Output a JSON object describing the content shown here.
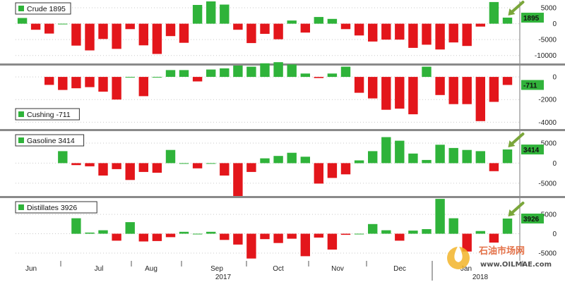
{
  "colors": {
    "positive": "#2fb33a",
    "negative": "#e3161b",
    "arrow": "#7aa63a",
    "grid": "#c9c9c9"
  },
  "chart_data": [
    {
      "type": "bar",
      "name": "Crude",
      "legend_value": "1895",
      "last_value_label": "1895",
      "ylim": [
        -12500,
        7000
      ],
      "yticks": [
        5000,
        0,
        -5000,
        -10000
      ],
      "ytick_labels": [
        "5000",
        "0",
        "-5000",
        "-10000"
      ],
      "values": [
        1800,
        -1900,
        -3100,
        0,
        -6900,
        -8400,
        -4800,
        -7900,
        -1700,
        -6800,
        -9500,
        -3900,
        -6000,
        5900,
        7000,
        6000,
        -1900,
        -6100,
        -3200,
        -4900,
        1000,
        -2800,
        2100,
        1500,
        -1700,
        -3700,
        -5600,
        -5000,
        -5000,
        -7600,
        -6600,
        -8100,
        -5900,
        -7000,
        -900,
        6800,
        1895
      ]
    },
    {
      "type": "bar",
      "name": "Cushing",
      "legend_value": "-711",
      "last_value_label": "-711",
      "ylim": [
        -4600,
        1000
      ],
      "yticks": [
        0,
        -2000,
        -4000
      ],
      "ytick_labels": [
        "0",
        "-2000",
        "-4000"
      ],
      "values": [
        -700,
        -1150,
        -1000,
        -900,
        -1300,
        -2000,
        0,
        -1700,
        0,
        600,
        600,
        -400,
        650,
        750,
        1000,
        900,
        1200,
        1300,
        1100,
        300,
        -100,
        300,
        900,
        -1400,
        -1900,
        -2900,
        -2800,
        -3300,
        900,
        -1600,
        -2400,
        -2400,
        -3900,
        -2200,
        -711
      ],
      "slot_offset": 2
    },
    {
      "type": "bar",
      "name": "Gasoline",
      "legend_value": "3414",
      "last_value_label": "3414",
      "ylim": [
        -8200,
        8000
      ],
      "yticks": [
        5000,
        0,
        -5000
      ],
      "ytick_labels": [
        "5000",
        "0",
        "-5000"
      ],
      "values": [
        3000,
        -500,
        -800,
        -3100,
        -1500,
        -4200,
        -2200,
        -2400,
        3300,
        0,
        -1300,
        0,
        -3100,
        -8200,
        -2200,
        1200,
        1800,
        2600,
        1600,
        -5100,
        -3700,
        -2800,
        700,
        3000,
        6500,
        5600,
        2400,
        800,
        4600,
        3800,
        3300,
        3000,
        -2000,
        3414
      ]
    },
    {
      "type": "bar",
      "name": "Distillates",
      "legend_value": "3926",
      "last_value_label": "3926",
      "ylim": [
        -7000,
        9200
      ],
      "yticks": [
        5000,
        0,
        -5000
      ],
      "ytick_labels": [
        "5000",
        "0",
        "-5000"
      ],
      "values": [
        4000,
        300,
        900,
        -1800,
        3000,
        -2000,
        -1900,
        -900,
        500,
        0,
        500,
        -1600,
        -2800,
        -6400,
        -1400,
        -2400,
        -1300,
        -5800,
        -1000,
        -4100,
        -300,
        0,
        2500,
        900,
        -1800,
        800,
        1200,
        9000,
        4000,
        -4600,
        700,
        -2300,
        3926
      ]
    }
  ],
  "x_axis": {
    "month_labels": [
      "Jun",
      "Jul",
      "Aug",
      "Sep",
      "Oct",
      "Nov",
      "Dec",
      "Jan"
    ],
    "year_labels": [
      "2017",
      "2018"
    ]
  },
  "watermark": {
    "text_cn": "石油市场网",
    "text_url": "www.OILMAE.com"
  }
}
